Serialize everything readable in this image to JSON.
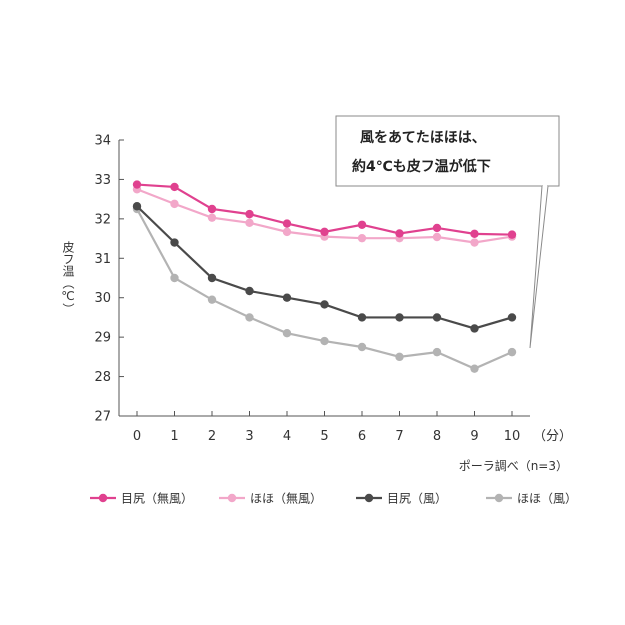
{
  "chart_data": {
    "type": "line",
    "x": [
      0,
      1,
      2,
      3,
      4,
      5,
      6,
      7,
      8,
      9,
      10
    ],
    "x_unit": "（分）",
    "ylabel": "皮フ温（℃）",
    "ylim": [
      27,
      34
    ],
    "yticks": [
      27,
      28,
      29,
      30,
      31,
      32,
      33,
      34
    ],
    "note": "ポーラ調べ（n=3）",
    "callout": [
      "風をあてたほほは、",
      "約4℃も皮フ温が低下"
    ],
    "series": [
      {
        "name": "目尻（無風）",
        "color": "#e0418f",
        "values": [
          32.87,
          32.81,
          32.25,
          32.12,
          31.88,
          31.67,
          31.85,
          31.63,
          31.77,
          31.62,
          31.6
        ]
      },
      {
        "name": "ほほ（無風）",
        "color": "#f2a7c9",
        "values": [
          32.75,
          32.38,
          32.03,
          31.9,
          31.67,
          31.55,
          31.51,
          31.51,
          31.54,
          31.4,
          31.55
        ]
      },
      {
        "name": "目尻（風）",
        "color": "#4a4a4a",
        "values": [
          32.32,
          31.4,
          30.5,
          30.17,
          30.0,
          29.83,
          29.5,
          29.5,
          29.5,
          29.22,
          29.5
        ]
      },
      {
        "name": "ほほ（風）",
        "color": "#b3b3b3",
        "values": [
          32.25,
          30.5,
          29.95,
          29.5,
          29.1,
          28.9,
          28.75,
          28.5,
          28.62,
          28.2,
          28.62
        ]
      }
    ]
  }
}
